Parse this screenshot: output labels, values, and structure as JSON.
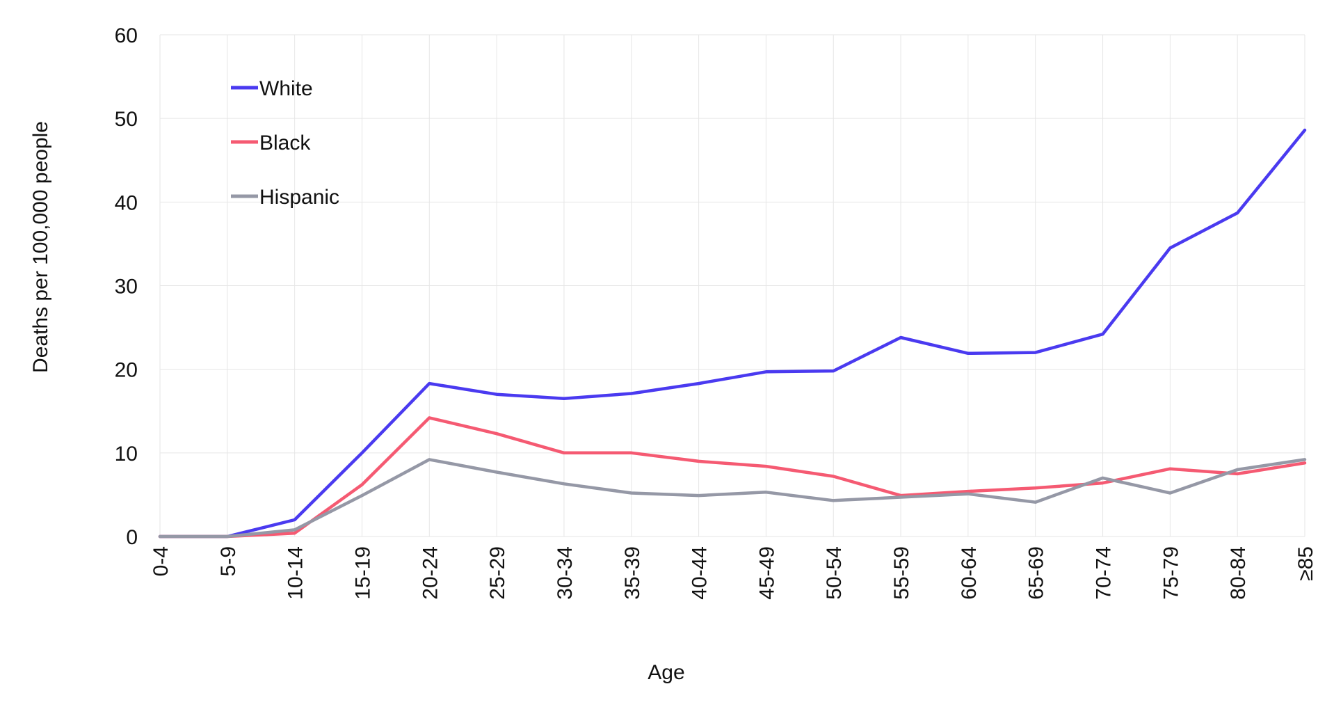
{
  "chart_data": {
    "type": "line",
    "title": "",
    "xlabel": "Age",
    "ylabel": "Deaths per 100,000 people",
    "ylim": [
      0,
      60
    ],
    "yticks": [
      0,
      10,
      20,
      30,
      40,
      50,
      60
    ],
    "grid": true,
    "legend_position": "top-left",
    "categories": [
      "0-4",
      "5-9",
      "10-14",
      "15-19",
      "20-24",
      "25-29",
      "30-34",
      "35-39",
      "40-44",
      "45-49",
      "50-54",
      "55-59",
      "60-64",
      "65-69",
      "70-74",
      "75-79",
      "80-84",
      "≥85"
    ],
    "series": [
      {
        "name": "White",
        "color": "#4a3af0",
        "values": [
          0,
          0,
          2.0,
          10.0,
          18.3,
          17.0,
          16.5,
          17.1,
          18.3,
          19.7,
          19.8,
          23.8,
          21.9,
          22.0,
          24.2,
          34.5,
          38.7,
          48.6
        ]
      },
      {
        "name": "Black",
        "color": "#f55a72",
        "values": [
          0,
          0,
          0.4,
          6.2,
          14.2,
          12.3,
          10.0,
          10.0,
          9.0,
          8.4,
          7.2,
          4.9,
          5.4,
          5.8,
          6.4,
          8.1,
          7.5,
          8.8
        ]
      },
      {
        "name": "Hispanic",
        "color": "#9598a6",
        "values": [
          0,
          0,
          0.8,
          4.9,
          9.2,
          7.7,
          6.3,
          5.2,
          4.9,
          5.3,
          4.3,
          4.7,
          5.1,
          4.1,
          7.0,
          5.2,
          8.0,
          9.2
        ]
      }
    ]
  }
}
